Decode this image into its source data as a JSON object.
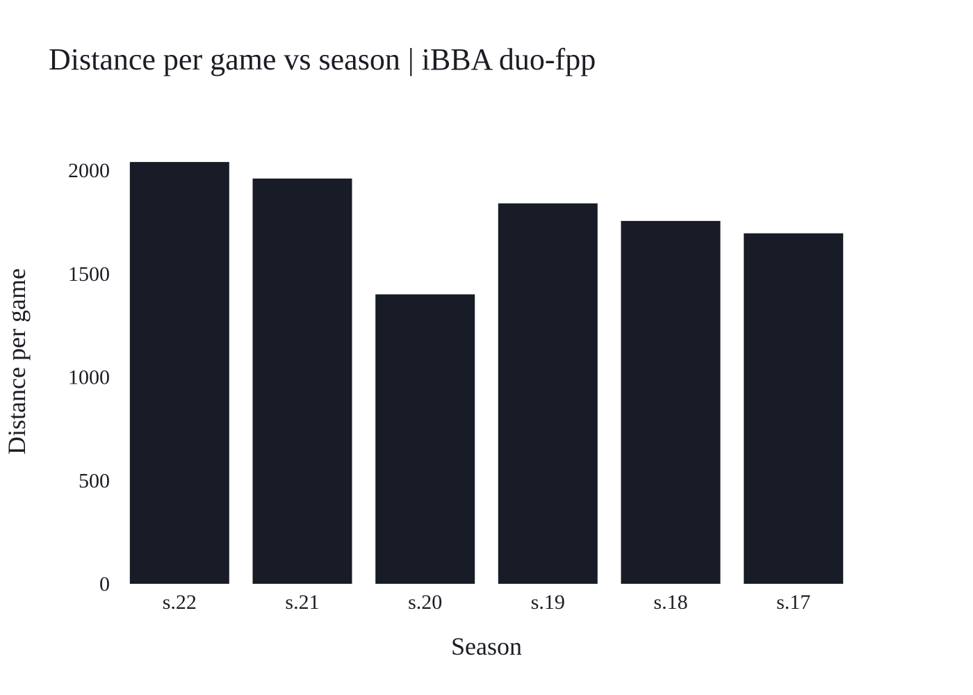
{
  "chart_data": {
    "type": "bar",
    "title": "Distance per game vs season | iBBA duo-fpp",
    "xlabel": "Season",
    "ylabel": "Distance per game",
    "categories": [
      "s.22",
      "s.21",
      "s.20",
      "s.19",
      "s.18",
      "s.17"
    ],
    "values": [
      2040,
      1960,
      1400,
      1840,
      1755,
      1695
    ],
    "ylim": [
      0,
      2000
    ],
    "yticks": [
      "0",
      "500",
      "1000",
      "1500",
      "2000"
    ],
    "grid": false,
    "legend": "none",
    "bar_color": "#171c26"
  }
}
